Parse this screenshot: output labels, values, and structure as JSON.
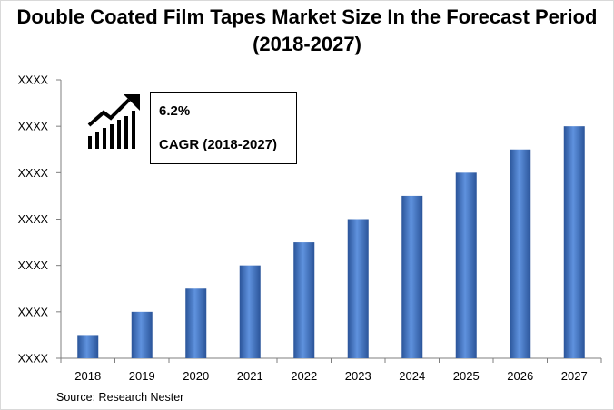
{
  "title": "Double Coated Film Tapes Market Size In the Forecast Period (2018-2027)",
  "source": "Source: Research Nester",
  "callout": {
    "value": "6.2%",
    "label": "CAGR (2018-2027)",
    "icon": "growth-chart-icon"
  },
  "chart_data": {
    "type": "bar",
    "title": "Double Coated Film Tapes Market Size In the Forecast Period (2018-2027)",
    "categories": [
      "2018",
      "2019",
      "2020",
      "2021",
      "2022",
      "2023",
      "2024",
      "2025",
      "2026",
      "2027"
    ],
    "values": [
      0.5,
      1.0,
      1.5,
      2.0,
      2.5,
      3.0,
      3.5,
      4.0,
      4.5,
      5.0
    ],
    "ylim": [
      0,
      6
    ],
    "ytick_labels": [
      "XXXX",
      "XXXX",
      "XXXX",
      "XXXX",
      "XXXX",
      "XXXX",
      "XXXX"
    ],
    "xlabel": "",
    "ylabel": "",
    "grid": false,
    "bar_color": "#3d72c4"
  }
}
